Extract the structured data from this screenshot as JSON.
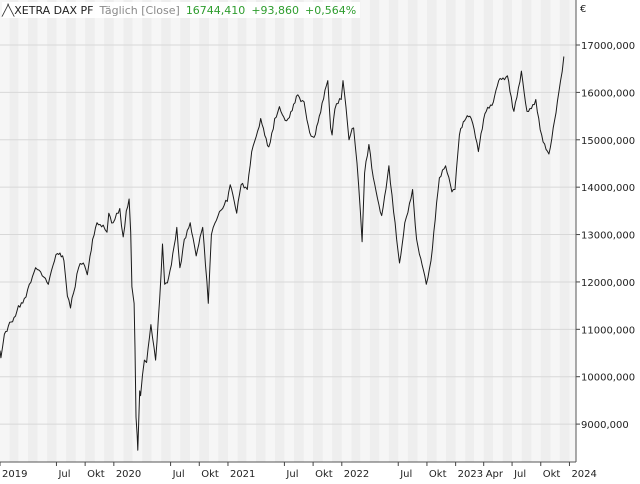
{
  "header": {
    "symbol": "XETRA DAX PF",
    "frequency": "Täglich [Close]",
    "last_value": "16744,410",
    "change": "+93,860",
    "change_pct": "+0,564%"
  },
  "currency_symbol": "€",
  "colors": {
    "line": "#1a1a1a",
    "positive": "#2e9d2e",
    "band_light": "#f6f6f6",
    "band_dark": "#eeeeee",
    "grid": "#d8d8d8"
  },
  "chart_data": {
    "type": "line",
    "title": "XETRA DAX PF",
    "y_tick_labels": [
      "9000,000",
      "10000,000",
      "11000,000",
      "12000,000",
      "13000,000",
      "14000,000",
      "15000,000",
      "16000,000",
      "17000,000"
    ],
    "y_ticks": [
      9000,
      10000,
      11000,
      12000,
      13000,
      14000,
      15000,
      16000,
      17000
    ],
    "ylim": [
      8200,
      17950
    ],
    "xlim": [
      "2019-01-01",
      "2024-01-22"
    ],
    "x_ticks": [
      {
        "label": "2019",
        "date": "2019-01-01"
      },
      {
        "label": "Jul",
        "date": "2019-07-01"
      },
      {
        "label": "Okt",
        "date": "2019-10-01"
      },
      {
        "label": "2020",
        "date": "2020-01-01"
      },
      {
        "label": "Jul",
        "date": "2020-07-01"
      },
      {
        "label": "Okt",
        "date": "2020-10-01"
      },
      {
        "label": "2021",
        "date": "2021-01-01"
      },
      {
        "label": "Jul",
        "date": "2021-07-01"
      },
      {
        "label": "Okt",
        "date": "2021-10-01"
      },
      {
        "label": "2022",
        "date": "2022-01-01"
      },
      {
        "label": "Jul",
        "date": "2022-07-01"
      },
      {
        "label": "Okt",
        "date": "2022-10-01"
      },
      {
        "label": "2023",
        "date": "2023-01-01"
      },
      {
        "label": "Apr",
        "date": "2023-04-01"
      },
      {
        "label": "Jul",
        "date": "2023-07-01"
      },
      {
        "label": "Okt",
        "date": "2023-10-01"
      },
      {
        "label": "2024",
        "date": "2024-01-01"
      }
    ],
    "grid": true,
    "series": [
      {
        "points": [
          [
            "2019-01-01",
            10550
          ],
          [
            "2019-01-04",
            10400
          ],
          [
            "2019-01-15",
            10900
          ],
          [
            "2019-02-01",
            11150
          ],
          [
            "2019-02-15",
            11250
          ],
          [
            "2019-03-01",
            11500
          ],
          [
            "2019-03-20",
            11650
          ],
          [
            "2019-04-05",
            11950
          ],
          [
            "2019-04-25",
            12300
          ],
          [
            "2019-05-06",
            12250
          ],
          [
            "2019-05-22",
            12100
          ],
          [
            "2019-06-05",
            11950
          ],
          [
            "2019-06-20",
            12350
          ],
          [
            "2019-07-04",
            12600
          ],
          [
            "2019-07-25",
            12450
          ],
          [
            "2019-08-05",
            11700
          ],
          [
            "2019-08-15",
            11450
          ],
          [
            "2019-08-30",
            11900
          ],
          [
            "2019-09-10",
            12300
          ],
          [
            "2019-09-25",
            12400
          ],
          [
            "2019-10-08",
            12150
          ],
          [
            "2019-10-25",
            12900
          ],
          [
            "2019-11-08",
            13250
          ],
          [
            "2019-11-28",
            13200
          ],
          [
            "2019-12-10",
            13050
          ],
          [
            "2019-12-16",
            13450
          ],
          [
            "2019-12-30",
            13250
          ],
          [
            "2020-01-10",
            13450
          ],
          [
            "2020-01-20",
            13550
          ],
          [
            "2020-01-31",
            12950
          ],
          [
            "2020-02-10",
            13500
          ],
          [
            "2020-02-19",
            13750
          ],
          [
            "2020-02-24",
            13050
          ],
          [
            "2020-02-28",
            11900
          ],
          [
            "2020-03-06",
            11550
          ],
          [
            "2020-03-09",
            10600
          ],
          [
            "2020-03-12",
            9150
          ],
          [
            "2020-03-16",
            8750
          ],
          [
            "2020-03-18",
            8450
          ],
          [
            "2020-03-24",
            9700
          ],
          [
            "2020-03-27",
            9600
          ],
          [
            "2020-04-08",
            10350
          ],
          [
            "2020-04-15",
            10300
          ],
          [
            "2020-04-29",
            11100
          ],
          [
            "2020-05-14",
            10350
          ],
          [
            "2020-05-27",
            11650
          ],
          [
            "2020-06-05",
            12800
          ],
          [
            "2020-06-12",
            11950
          ],
          [
            "2020-06-25",
            12100
          ],
          [
            "2020-07-08",
            12600
          ],
          [
            "2020-07-21",
            13150
          ],
          [
            "2020-07-31",
            12300
          ],
          [
            "2020-08-14",
            12900
          ],
          [
            "2020-09-02",
            13250
          ],
          [
            "2020-09-21",
            12550
          ],
          [
            "2020-10-12",
            13150
          ],
          [
            "2020-10-30",
            11550
          ],
          [
            "2020-11-09",
            13000
          ],
          [
            "2020-11-25",
            13300
          ],
          [
            "2020-12-15",
            13550
          ],
          [
            "2020-12-30",
            13700
          ],
          [
            "2021-01-08",
            14050
          ],
          [
            "2021-01-29",
            13450
          ],
          [
            "2021-02-12",
            14050
          ],
          [
            "2021-03-04",
            13950
          ],
          [
            "2021-03-18",
            14750
          ],
          [
            "2021-04-16",
            15450
          ],
          [
            "2021-05-12",
            14850
          ],
          [
            "2021-05-31",
            15450
          ],
          [
            "2021-06-15",
            15700
          ],
          [
            "2021-07-08",
            15400
          ],
          [
            "2021-08-13",
            15950
          ],
          [
            "2021-09-02",
            15800
          ],
          [
            "2021-09-20",
            15150
          ],
          [
            "2021-10-04",
            15050
          ],
          [
            "2021-10-21",
            15500
          ],
          [
            "2021-11-17",
            16250
          ],
          [
            "2021-11-26",
            15250
          ],
          [
            "2021-12-01",
            15100
          ],
          [
            "2021-12-10",
            15650
          ],
          [
            "2021-12-30",
            15850
          ],
          [
            "2022-01-05",
            16250
          ],
          [
            "2022-01-24",
            15000
          ],
          [
            "2022-02-08",
            15250
          ],
          [
            "2022-02-24",
            14050
          ],
          [
            "2022-03-07",
            12850
          ],
          [
            "2022-03-15",
            14300
          ],
          [
            "2022-03-29",
            14900
          ],
          [
            "2022-04-12",
            14200
          ],
          [
            "2022-05-09",
            13400
          ],
          [
            "2022-06-01",
            14450
          ],
          [
            "2022-06-21",
            13250
          ],
          [
            "2022-07-05",
            12400
          ],
          [
            "2022-07-22",
            13250
          ],
          [
            "2022-08-16",
            13950
          ],
          [
            "2022-08-29",
            12900
          ],
          [
            "2022-09-29",
            11950
          ],
          [
            "2022-10-14",
            12450
          ],
          [
            "2022-11-10",
            14200
          ],
          [
            "2022-11-30",
            14450
          ],
          [
            "2022-12-20",
            13900
          ],
          [
            "2022-12-30",
            13950
          ],
          [
            "2023-01-13",
            15100
          ],
          [
            "2023-02-03",
            15450
          ],
          [
            "2023-02-20",
            15450
          ],
          [
            "2023-03-15",
            14750
          ],
          [
            "2023-04-05",
            15550
          ],
          [
            "2023-05-02",
            15800
          ],
          [
            "2023-05-19",
            16250
          ],
          [
            "2023-06-16",
            16350
          ],
          [
            "2023-07-07",
            15600
          ],
          [
            "2023-07-31",
            16450
          ],
          [
            "2023-08-18",
            15600
          ],
          [
            "2023-09-15",
            15850
          ],
          [
            "2023-10-04",
            15100
          ],
          [
            "2023-10-27",
            14700
          ],
          [
            "2023-11-10",
            15250
          ],
          [
            "2023-11-28",
            16000
          ],
          [
            "2023-12-14",
            16750
          ],
          [
            "2023-12-15",
            16744
          ]
        ]
      }
    ]
  }
}
